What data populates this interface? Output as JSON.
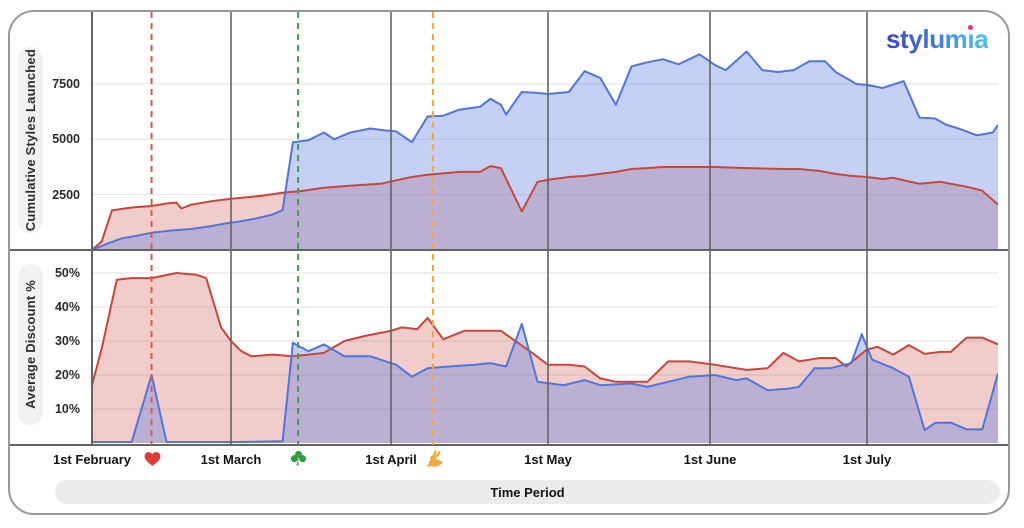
{
  "logo": {
    "text": "stylumia",
    "gradient_start": "#3845c5",
    "gradient_end": "#4cc3f2",
    "dot_color": "#e0317e"
  },
  "x_axis": {
    "label": "Time Period",
    "domain_days": [
      0,
      175
    ],
    "ticks": [
      {
        "label": "1st February",
        "day": 0
      },
      {
        "label": "1st March",
        "day": 28
      },
      {
        "label": "1st April",
        "day": 59
      },
      {
        "label": "1st May",
        "day": 89
      },
      {
        "label": "1st June",
        "day": 120
      },
      {
        "label": "1st July",
        "day": 150
      }
    ]
  },
  "events": [
    {
      "name": "valentines-day",
      "icon": "heart",
      "color": "#e0564b",
      "icon_color": "#e03c31",
      "day": 12
    },
    {
      "name": "st-patricks-day",
      "icon": "shamrock",
      "color": "#3fa04b",
      "icon_color": "#2e9e3e",
      "day": 41
    },
    {
      "name": "easter",
      "icon": "rabbit",
      "color": "#f0a735",
      "icon_color": "#f2a93b",
      "day": 67
    }
  ],
  "colors": {
    "blue_line": "#5274de",
    "blue_fill": "rgba(85,119,222,0.34)",
    "red_line": "#c7463d",
    "red_fill": "rgba(199,70,61,0.27)",
    "grid_light": "#e7e7e7",
    "grid_dark": "#646464",
    "card_border": "#97999c",
    "pill_bg": "#f1f1f1"
  },
  "chart_data": [
    {
      "type": "area",
      "panel": "top",
      "ylabel": "Cumulative Styles Launched",
      "xlabel": "Time Period",
      "ylim": [
        0,
        10750
      ],
      "grid": true,
      "legend": "none",
      "yticks": [
        {
          "label": "2500",
          "value": 2500
        },
        {
          "label": "5000",
          "value": 5000
        },
        {
          "label": "7500",
          "value": 7500
        }
      ],
      "series": [
        {
          "name": "series-red",
          "points": [
            [
              0,
              0
            ],
            [
              2,
              400
            ],
            [
              4,
              1790
            ],
            [
              8,
              1920
            ],
            [
              12,
              1990
            ],
            [
              15,
              2100
            ],
            [
              17,
              2140
            ],
            [
              18,
              1875
            ],
            [
              20,
              2050
            ],
            [
              24,
              2200
            ],
            [
              28,
              2320
            ],
            [
              34,
              2450
            ],
            [
              38,
              2590
            ],
            [
              42,
              2680
            ],
            [
              46,
              2810
            ],
            [
              51,
              2900
            ],
            [
              57,
              2990
            ],
            [
              60,
              3150
            ],
            [
              63,
              3300
            ],
            [
              66,
              3400
            ],
            [
              69,
              3460
            ],
            [
              72,
              3530
            ],
            [
              76,
              3530
            ],
            [
              78,
              3790
            ],
            [
              80,
              3700
            ],
            [
              84,
              1740
            ],
            [
              87,
              3080
            ],
            [
              89,
              3170
            ],
            [
              93,
              3300
            ],
            [
              96,
              3350
            ],
            [
              99,
              3440
            ],
            [
              102,
              3530
            ],
            [
              105,
              3660
            ],
            [
              108,
              3700
            ],
            [
              111,
              3750
            ],
            [
              118,
              3750
            ],
            [
              121,
              3750
            ],
            [
              127,
              3700
            ],
            [
              134,
              3660
            ],
            [
              137,
              3660
            ],
            [
              141,
              3570
            ],
            [
              144,
              3440
            ],
            [
              147,
              3350
            ],
            [
              150,
              3300
            ],
            [
              153,
              3210
            ],
            [
              155,
              3260
            ],
            [
              160,
              2990
            ],
            [
              164,
              3080
            ],
            [
              166,
              2990
            ],
            [
              169,
              2860
            ],
            [
              172,
              2680
            ],
            [
              175,
              2050
            ]
          ]
        },
        {
          "name": "series-blue",
          "points": [
            [
              0,
              0
            ],
            [
              3,
              280
            ],
            [
              6,
              530
            ],
            [
              9,
              640
            ],
            [
              12,
              780
            ],
            [
              16,
              880
            ],
            [
              20,
              950
            ],
            [
              24,
              1080
            ],
            [
              27,
              1200
            ],
            [
              30,
              1300
            ],
            [
              33,
              1430
            ],
            [
              36,
              1600
            ],
            [
              38,
              1800
            ],
            [
              40,
              4870
            ],
            [
              43,
              4960
            ],
            [
              46,
              5310
            ],
            [
              48,
              5000
            ],
            [
              51,
              5300
            ],
            [
              55,
              5490
            ],
            [
              58,
              5400
            ],
            [
              60,
              5360
            ],
            [
              63,
              4870
            ],
            [
              66,
              6030
            ],
            [
              69,
              6070
            ],
            [
              72,
              6340
            ],
            [
              76,
              6470
            ],
            [
              78,
              6830
            ],
            [
              80,
              6560
            ],
            [
              81,
              6120
            ],
            [
              84,
              7140
            ],
            [
              87,
              7100
            ],
            [
              89,
              7050
            ],
            [
              93,
              7140
            ],
            [
              96,
              8080
            ],
            [
              99,
              7770
            ],
            [
              102,
              6560
            ],
            [
              105,
              8300
            ],
            [
              108,
              8480
            ],
            [
              111,
              8620
            ],
            [
              114,
              8390
            ],
            [
              118,
              8840
            ],
            [
              121,
              8350
            ],
            [
              123,
              8130
            ],
            [
              127,
              8970
            ],
            [
              130,
              8130
            ],
            [
              133,
              8040
            ],
            [
              136,
              8130
            ],
            [
              139,
              8530
            ],
            [
              142,
              8530
            ],
            [
              144,
              8040
            ],
            [
              146,
              7770
            ],
            [
              148,
              7500
            ],
            [
              150,
              7460
            ],
            [
              153,
              7320
            ],
            [
              157,
              7630
            ],
            [
              160,
              5980
            ],
            [
              163,
              5940
            ],
            [
              165,
              5670
            ],
            [
              168,
              5450
            ],
            [
              171,
              5180
            ],
            [
              174,
              5310
            ],
            [
              175,
              5650
            ]
          ]
        }
      ]
    },
    {
      "type": "area",
      "panel": "bottom",
      "ylabel": "Average Discount %",
      "xlabel": "Time Period",
      "ylim": [
        0,
        56
      ],
      "grid": true,
      "legend": "none",
      "yticks": [
        {
          "label": "10%",
          "value": 10
        },
        {
          "label": "20%",
          "value": 20
        },
        {
          "label": "30%",
          "value": 30
        },
        {
          "label": "40%",
          "value": 40
        },
        {
          "label": "50%",
          "value": 50
        }
      ],
      "series": [
        {
          "name": "series-red",
          "points": [
            [
              0,
              17
            ],
            [
              2,
              28
            ],
            [
              5,
              48
            ],
            [
              8,
              48.5
            ],
            [
              12,
              48.5
            ],
            [
              17,
              50
            ],
            [
              21,
              49.5
            ],
            [
              23,
              48.5
            ],
            [
              26,
              34
            ],
            [
              28,
              30
            ],
            [
              30,
              27
            ],
            [
              32,
              25.5
            ],
            [
              36,
              26
            ],
            [
              40,
              25.5
            ],
            [
              43,
              26
            ],
            [
              46,
              26.5
            ],
            [
              50,
              30
            ],
            [
              54,
              31.5
            ],
            [
              59,
              33
            ],
            [
              61,
              34
            ],
            [
              64,
              33.5
            ],
            [
              66,
              36.8
            ],
            [
              69,
              30.5
            ],
            [
              73,
              33
            ],
            [
              80,
              33
            ],
            [
              86,
              26.5
            ],
            [
              89,
              23
            ],
            [
              93,
              23
            ],
            [
              96,
              22.5
            ],
            [
              99,
              19
            ],
            [
              102,
              18
            ],
            [
              108,
              18
            ],
            [
              112,
              24
            ],
            [
              116,
              24
            ],
            [
              121,
              23
            ],
            [
              127,
              21.5
            ],
            [
              131,
              22
            ],
            [
              134,
              26.5
            ],
            [
              137,
              24
            ],
            [
              141,
              25
            ],
            [
              144,
              25
            ],
            [
              146,
              22.5
            ],
            [
              150,
              27.5
            ],
            [
              152,
              28.3
            ],
            [
              155,
              26
            ],
            [
              158,
              28.8
            ],
            [
              161,
              26.2
            ],
            [
              164,
              26.8
            ],
            [
              166,
              26.8
            ],
            [
              169,
              31
            ],
            [
              172,
              31
            ],
            [
              175,
              29
            ]
          ]
        },
        {
          "name": "series-blue",
          "points": [
            [
              0,
              0.3
            ],
            [
              8,
              0.3
            ],
            [
              12,
              20
            ],
            [
              15,
              0.3
            ],
            [
              30,
              0.3
            ],
            [
              38,
              0.5
            ],
            [
              40,
              29.5
            ],
            [
              43,
              27
            ],
            [
              46,
              29
            ],
            [
              50,
              25.5
            ],
            [
              55,
              25.5
            ],
            [
              58,
              24
            ],
            [
              60,
              23
            ],
            [
              63,
              19.5
            ],
            [
              66,
              22
            ],
            [
              70,
              22.5
            ],
            [
              75,
              23
            ],
            [
              78,
              23.5
            ],
            [
              81,
              22.5
            ],
            [
              84,
              35
            ],
            [
              87,
              18
            ],
            [
              92,
              17
            ],
            [
              96,
              18.5
            ],
            [
              99,
              17
            ],
            [
              105,
              17.5
            ],
            [
              108,
              16.5
            ],
            [
              112,
              18
            ],
            [
              116,
              19.5
            ],
            [
              121,
              20
            ],
            [
              125,
              18.5
            ],
            [
              127,
              19
            ],
            [
              131,
              15.5
            ],
            [
              135,
              16
            ],
            [
              137,
              16.5
            ],
            [
              140,
              22
            ],
            [
              143,
              22
            ],
            [
              147,
              23.5
            ],
            [
              149,
              32
            ],
            [
              151,
              24.5
            ],
            [
              155,
              22
            ],
            [
              158,
              19.5
            ],
            [
              161,
              3.8
            ],
            [
              163,
              5.9
            ],
            [
              166,
              6
            ],
            [
              169,
              4
            ],
            [
              172,
              4
            ],
            [
              175,
              20.5
            ]
          ]
        }
      ]
    }
  ]
}
